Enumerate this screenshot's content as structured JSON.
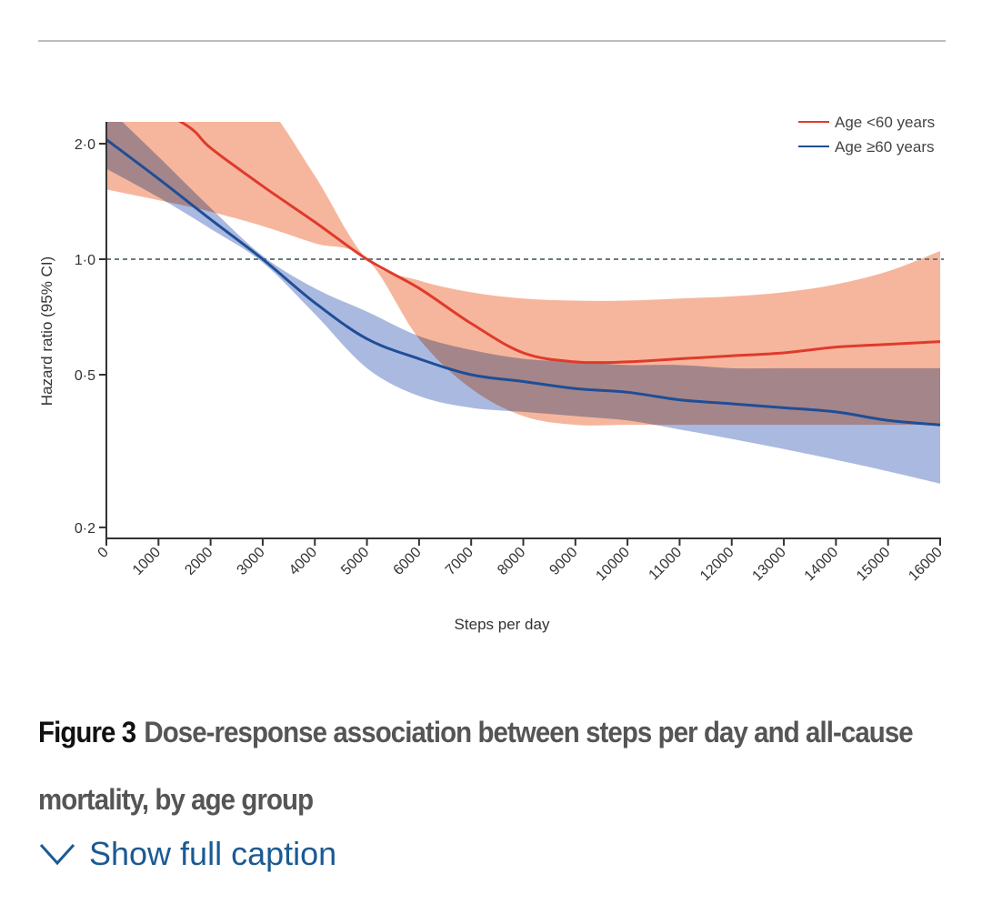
{
  "page": {
    "caption": {
      "figure_label": "Figure 3",
      "text": "Dose-response association between steps per day and all-cause mortality, by age group"
    },
    "show_caption": {
      "label": "Show full caption",
      "icon": "chevron-down-icon"
    }
  },
  "colors": {
    "under60_line": "#e03a2c",
    "under60_band": "#f4a98c",
    "over60_line": "#1f4e96",
    "over60_band": "#8ea2d6",
    "reference_line": "#6b7a80",
    "link": "#1b5a93"
  },
  "chart_data": {
    "type": "line",
    "title": "",
    "xlabel": "Steps per day",
    "ylabel": "Hazard ratio (95% CI)",
    "xlim": [
      0,
      16000
    ],
    "ylim": [
      0.18,
      2.25
    ],
    "yscale": "log",
    "x_ticks": [
      0,
      1000,
      2000,
      3000,
      4000,
      5000,
      6000,
      7000,
      8000,
      9000,
      10000,
      11000,
      12000,
      13000,
      14000,
      15000,
      16000
    ],
    "x_tick_labels": [
      "0",
      "1000",
      "2000",
      "3000",
      "4000",
      "5000",
      "6000",
      "7000",
      "8000",
      "9000",
      "10000",
      "11000",
      "12000",
      "13000",
      "14000",
      "15000",
      "16000"
    ],
    "y_ticks": [
      0.2,
      0.5,
      1.0,
      2.0
    ],
    "y_tick_labels": [
      "0·2",
      "0·5",
      "1·0",
      "2·0"
    ],
    "reference_line": 1.0,
    "grid": false,
    "legend_position": "top-right",
    "series": [
      {
        "name": "Age <60 years",
        "color_key": "under60",
        "x": [
          0,
          1500,
          2000,
          3000,
          4000,
          5000,
          6000,
          7000,
          8000,
          9000,
          10000,
          11000,
          12000,
          13000,
          14000,
          15000,
          16000
        ],
        "y": [
          2.9,
          2.25,
          1.95,
          1.55,
          1.25,
          1.0,
          0.84,
          0.68,
          0.57,
          0.54,
          0.54,
          0.55,
          0.56,
          0.57,
          0.59,
          0.6,
          0.61
        ],
        "lower": [
          1.52,
          1.38,
          1.33,
          1.22,
          1.1,
          1.0,
          0.62,
          0.46,
          0.39,
          0.37,
          0.37,
          0.37,
          0.37,
          0.37,
          0.37,
          0.37,
          0.37
        ],
        "upper": [
          4.5,
          3.6,
          3.2,
          2.6,
          1.65,
          1.0,
          0.88,
          0.82,
          0.79,
          0.78,
          0.78,
          0.79,
          0.8,
          0.82,
          0.86,
          0.93,
          1.05
        ]
      },
      {
        "name": "Age ≥60 years",
        "color_key": "over60",
        "x": [
          0,
          1000,
          2000,
          3000,
          4000,
          5000,
          6000,
          7000,
          8000,
          9000,
          10000,
          11000,
          12000,
          13000,
          14000,
          15000,
          16000
        ],
        "y": [
          2.05,
          1.62,
          1.27,
          1.0,
          0.77,
          0.62,
          0.55,
          0.5,
          0.48,
          0.46,
          0.45,
          0.43,
          0.42,
          0.41,
          0.4,
          0.38,
          0.37
        ],
        "lower": [
          1.72,
          1.45,
          1.2,
          0.98,
          0.72,
          0.52,
          0.44,
          0.41,
          0.4,
          0.39,
          0.38,
          0.36,
          0.34,
          0.32,
          0.3,
          0.28,
          0.26
        ],
        "upper": [
          2.5,
          1.85,
          1.36,
          1.02,
          0.84,
          0.73,
          0.63,
          0.58,
          0.55,
          0.54,
          0.53,
          0.53,
          0.52,
          0.52,
          0.52,
          0.52,
          0.52
        ]
      }
    ]
  }
}
